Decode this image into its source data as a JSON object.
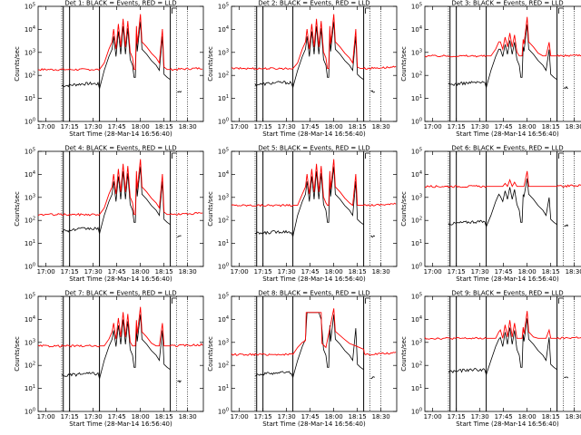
{
  "figure": {
    "background": "#ffffff",
    "event_color": "#000000",
    "lld_color": "#ff0000"
  },
  "chart_data": [
    {
      "type": "line",
      "title": "Det 1: BLACK = Events, RED = LLD",
      "xlabel": "Start Time (28-Mar-14 16:56:40)",
      "ylabel": "Counts/sec",
      "yscale": "log",
      "ylim": [
        1,
        100000
      ],
      "xticks": [
        "17:00",
        "17:15",
        "17:30",
        "17:45",
        "18:00",
        "18:15",
        "18:30"
      ],
      "yticks": [
        "10^0",
        "10^1",
        "10^2",
        "10^3",
        "10^4",
        "10^5"
      ],
      "red_base": 180,
      "black_base": 40,
      "black_end": 20,
      "spikes": [
        9000,
        15000,
        25000,
        20000,
        30000
      ],
      "big_spike": 40000,
      "saturate": false
    },
    {
      "type": "line",
      "title": "Det 2: BLACK = Events, RED = LLD",
      "xlabel": "Start Time (28-Mar-14 16:56:40)",
      "ylabel": "Counts/sec",
      "yscale": "log",
      "ylim": [
        1,
        100000
      ],
      "xticks": [
        "17:00",
        "17:15",
        "17:30",
        "17:45",
        "18:00",
        "18:15",
        "18:30"
      ],
      "yticks": [
        "10^0",
        "10^1",
        "10^2",
        "10^3",
        "10^4",
        "10^5"
      ],
      "red_base": 200,
      "black_base": 45,
      "black_end": 20,
      "spikes": [
        9000,
        15000,
        25000,
        20000,
        30000
      ],
      "big_spike": 40000,
      "saturate": false
    },
    {
      "type": "line",
      "title": "Det 3: BLACK = Events, RED = LLD",
      "xlabel": "Start Time (28-Mar-14 16:56:40)",
      "ylabel": "Counts/sec",
      "yscale": "log",
      "ylim": [
        1,
        100000
      ],
      "xticks": [
        "17:00",
        "17:15",
        "17:30",
        "17:45",
        "18:00",
        "18:15",
        "18:30"
      ],
      "yticks": [
        "10^0",
        "10^1",
        "10^2",
        "10^3",
        "10^4",
        "10^5"
      ],
      "red_base": 700,
      "black_base": 45,
      "black_end": 30,
      "spikes": [
        2500,
        4000,
        6000,
        5000,
        8000
      ],
      "big_spike": 30000,
      "saturate": false
    },
    {
      "type": "line",
      "title": "Det 4: BLACK = Events, RED = LLD",
      "xlabel": "Start Time (28-Mar-14 16:56:40)",
      "ylabel": "Counts/sec",
      "yscale": "log",
      "ylim": [
        1,
        100000
      ],
      "xticks": [
        "17:00",
        "17:15",
        "17:30",
        "17:45",
        "18:00",
        "18:15",
        "18:30"
      ],
      "yticks": [
        "10^0",
        "10^1",
        "10^2",
        "10^3",
        "10^4",
        "10^5"
      ],
      "red_base": 180,
      "black_base": 40,
      "black_end": 20,
      "spikes": [
        9000,
        15000,
        25000,
        20000,
        30000
      ],
      "big_spike": 40000,
      "saturate": false
    },
    {
      "type": "line",
      "title": "Det 5: BLACK = Events, RED = LLD",
      "xlabel": "Start Time (28-Mar-14 16:56:40)",
      "ylabel": "Counts/sec",
      "yscale": "log",
      "ylim": [
        1,
        100000
      ],
      "xticks": [
        "17:00",
        "17:15",
        "17:30",
        "17:45",
        "18:00",
        "18:15",
        "18:30"
      ],
      "yticks": [
        "10^0",
        "10^1",
        "10^2",
        "10^3",
        "10^4",
        "10^5"
      ],
      "red_base": 450,
      "black_base": 30,
      "black_end": 20,
      "spikes": [
        9000,
        15000,
        25000,
        20000,
        30000
      ],
      "big_spike": 40000,
      "saturate": false
    },
    {
      "type": "line",
      "title": "Det 6: BLACK = Events, RED = LLD",
      "xlabel": "Start Time (28-Mar-14 16:56:40)",
      "ylabel": "Counts/sec",
      "yscale": "log",
      "ylim": [
        1,
        100000
      ],
      "xticks": [
        "17:00",
        "17:15",
        "17:30",
        "17:45",
        "18:00",
        "18:15",
        "18:30"
      ],
      "yticks": [
        "10^0",
        "10^1",
        "10^2",
        "10^3",
        "10^4",
        "10^5"
      ],
      "red_base": 3000,
      "black_base": 80,
      "black_end": 60,
      "spikes": [
        2000,
        3500,
        5000,
        4000,
        6000
      ],
      "big_spike": 12000,
      "saturate": false
    },
    {
      "type": "line",
      "title": "Det 7: BLACK = Events, RED = LLD",
      "xlabel": "Start Time (28-Mar-14 16:56:40)",
      "ylabel": "Counts/sec",
      "yscale": "log",
      "ylim": [
        1,
        100000
      ],
      "xticks": [
        "17:00",
        "17:15",
        "17:30",
        "17:45",
        "18:00",
        "18:15",
        "18:30"
      ],
      "yticks": [
        "10^0",
        "10^1",
        "10^2",
        "10^3",
        "10^4",
        "10^5"
      ],
      "red_base": 700,
      "black_base": 40,
      "black_end": 20,
      "spikes": [
        6000,
        10000,
        18000,
        15000,
        20000
      ],
      "big_spike": 30000,
      "saturate": false
    },
    {
      "type": "line",
      "title": "Det 8: BLACK = Events, RED = LLD",
      "xlabel": "Start Time (28-Mar-14 16:56:40)",
      "ylabel": "Counts/sec",
      "yscale": "log",
      "ylim": [
        1,
        100000
      ],
      "xticks": [
        "17:00",
        "17:15",
        "17:30",
        "17:45",
        "18:00",
        "18:15",
        "18:30"
      ],
      "yticks": [
        "10^0",
        "10^1",
        "10^2",
        "10^3",
        "10^4",
        "10^5"
      ],
      "red_base": 300,
      "black_base": 45,
      "black_end": 30,
      "spikes": [
        8000,
        12000,
        20000,
        18000,
        25000
      ],
      "big_spike": 30000,
      "saturate": true
    },
    {
      "type": "line",
      "title": "Det 9: BLACK = Events, RED = LLD",
      "xlabel": "Start Time (28-Mar-14 16:56:40)",
      "ylabel": "Counts/sec",
      "yscale": "log",
      "ylim": [
        1,
        100000
      ],
      "xticks": [
        "17:00",
        "17:15",
        "17:30",
        "17:45",
        "18:00",
        "18:15",
        "18:30"
      ],
      "yticks": [
        "10^0",
        "10^1",
        "10^2",
        "10^3",
        "10^4",
        "10^5"
      ],
      "red_base": 1500,
      "black_base": 60,
      "black_end": 30,
      "spikes": [
        3000,
        5000,
        8000,
        6000,
        10000
      ],
      "big_spike": 20000,
      "saturate": false
    }
  ]
}
